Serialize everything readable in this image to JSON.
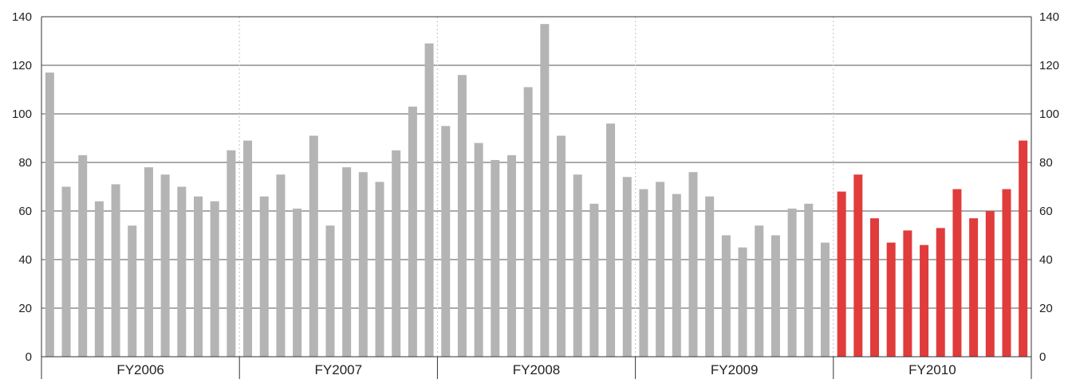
{
  "colors": {
    "historical_bar": "#b4b4b4",
    "highlight_bar": "#e03c3c",
    "gridline": "#555555",
    "fy_separator": "#cccccc",
    "axis": "#333333"
  },
  "chart_data": {
    "type": "bar",
    "ylim": [
      0,
      140
    ],
    "yticks": [
      0,
      20,
      40,
      60,
      80,
      100,
      120,
      140
    ],
    "grid": true,
    "y_axis_both_sides": true,
    "fiscal_years": [
      {
        "label": "FY2006",
        "values": [
          117,
          70,
          83,
          64,
          71,
          54,
          78,
          75,
          70,
          66,
          64,
          85
        ],
        "highlight": false
      },
      {
        "label": "FY2007",
        "values": [
          89,
          66,
          75,
          61,
          91,
          54,
          78,
          76,
          72,
          85,
          103,
          129
        ],
        "highlight": false
      },
      {
        "label": "FY2008",
        "values": [
          95,
          116,
          88,
          81,
          83,
          111,
          137,
          91,
          75,
          63,
          96,
          74
        ],
        "highlight": false
      },
      {
        "label": "FY2009",
        "values": [
          69,
          72,
          67,
          76,
          66,
          50,
          45,
          54,
          50,
          61,
          63,
          47
        ],
        "highlight": false
      },
      {
        "label": "FY2010",
        "values": [
          68,
          75,
          57,
          47,
          52,
          46,
          53,
          69,
          57,
          60,
          69,
          89
        ],
        "highlight": true
      }
    ]
  }
}
